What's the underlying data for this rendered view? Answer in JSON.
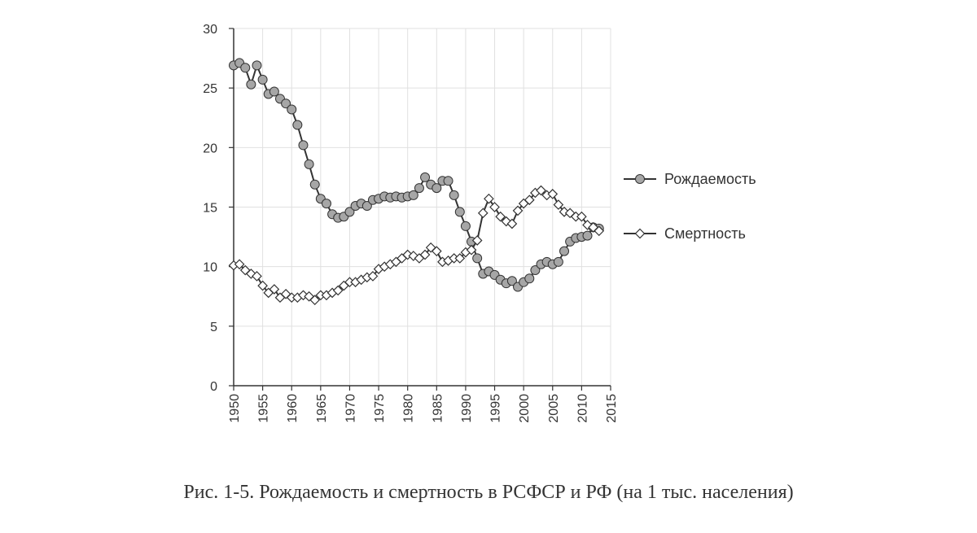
{
  "caption": "Рис. 1-5. Рождаемость и смертность в РСФСР и РФ (на 1 тыс. населения)",
  "colors": {
    "axis": "#333333",
    "grid": "#e0e0e0",
    "line": "#333333",
    "birth_marker": "#a6a6a6",
    "death_marker": "#ffffff"
  },
  "chart_data": {
    "type": "line",
    "title": "",
    "xlabel": "",
    "ylabel": "",
    "xlim": [
      1950,
      2015
    ],
    "ylim": [
      0,
      30
    ],
    "xticks": [
      1950,
      1955,
      1960,
      1965,
      1970,
      1975,
      1980,
      1985,
      1990,
      1995,
      2000,
      2005,
      2010,
      2015
    ],
    "yticks": [
      0,
      5,
      10,
      15,
      20,
      25,
      30
    ],
    "grid": true,
    "legend_position": "right",
    "x": [
      1950,
      1951,
      1952,
      1953,
      1954,
      1955,
      1956,
      1957,
      1958,
      1959,
      1960,
      1961,
      1962,
      1963,
      1964,
      1965,
      1966,
      1967,
      1968,
      1969,
      1970,
      1971,
      1972,
      1973,
      1974,
      1975,
      1976,
      1977,
      1978,
      1979,
      1980,
      1981,
      1982,
      1983,
      1984,
      1985,
      1986,
      1987,
      1988,
      1989,
      1990,
      1991,
      1992,
      1993,
      1994,
      1995,
      1996,
      1997,
      1998,
      1999,
      2000,
      2001,
      2002,
      2003,
      2004,
      2005,
      2006,
      2007,
      2008,
      2009,
      2010,
      2011,
      2012,
      2013
    ],
    "series": [
      {
        "name": "Рождаемость",
        "marker": "circle",
        "values": [
          26.9,
          27.1,
          26.7,
          25.3,
          26.9,
          25.7,
          24.5,
          24.7,
          24.1,
          23.7,
          23.2,
          21.9,
          20.2,
          18.6,
          16.9,
          15.7,
          15.3,
          14.4,
          14.1,
          14.2,
          14.6,
          15.1,
          15.3,
          15.1,
          15.6,
          15.7,
          15.9,
          15.8,
          15.9,
          15.8,
          15.9,
          16.0,
          16.6,
          17.5,
          16.9,
          16.6,
          17.2,
          17.2,
          16.0,
          14.6,
          13.4,
          12.1,
          10.7,
          9.4,
          9.6,
          9.3,
          8.9,
          8.6,
          8.8,
          8.3,
          8.7,
          9.0,
          9.7,
          10.2,
          10.4,
          10.2,
          10.4,
          11.3,
          12.1,
          12.4,
          12.5,
          12.6,
          13.3,
          13.2
        ]
      },
      {
        "name": "Смертность",
        "marker": "diamond",
        "values": [
          10.1,
          10.2,
          9.7,
          9.4,
          9.2,
          8.4,
          7.8,
          8.1,
          7.4,
          7.7,
          7.4,
          7.4,
          7.6,
          7.5,
          7.2,
          7.6,
          7.6,
          7.8,
          8.0,
          8.4,
          8.7,
          8.7,
          8.9,
          9.1,
          9.2,
          9.8,
          10.0,
          10.2,
          10.4,
          10.7,
          11.0,
          10.9,
          10.7,
          11.0,
          11.6,
          11.3,
          10.4,
          10.5,
          10.7,
          10.7,
          11.2,
          11.4,
          12.2,
          14.5,
          15.7,
          15.0,
          14.2,
          13.8,
          13.6,
          14.7,
          15.3,
          15.6,
          16.2,
          16.4,
          16.0,
          16.1,
          15.2,
          14.6,
          14.5,
          14.2,
          14.2,
          13.5,
          13.3,
          13.0
        ]
      }
    ]
  }
}
